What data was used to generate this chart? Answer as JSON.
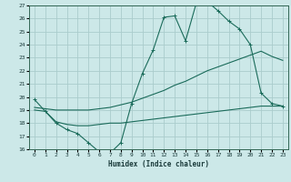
{
  "xlabel": "Humidex (Indice chaleur)",
  "bg_color": "#cce8e8",
  "line_color": "#1a6b5a",
  "grid_color": "#aacccc",
  "xlim": [
    -0.5,
    23.5
  ],
  "ylim": [
    16,
    27
  ],
  "xticks": [
    0,
    1,
    2,
    3,
    4,
    5,
    6,
    7,
    8,
    9,
    10,
    11,
    12,
    13,
    14,
    15,
    16,
    17,
    18,
    19,
    20,
    21,
    22,
    23
  ],
  "yticks": [
    16,
    17,
    18,
    19,
    20,
    21,
    22,
    23,
    24,
    25,
    26,
    27
  ],
  "series1_x": [
    0,
    1,
    2,
    3,
    4,
    5,
    6,
    7,
    8,
    9,
    10,
    11,
    12,
    13,
    14,
    15,
    16,
    17,
    18,
    19,
    20,
    21,
    22,
    23
  ],
  "series1_y": [
    19.8,
    18.9,
    18.0,
    17.5,
    17.2,
    16.5,
    15.8,
    15.7,
    16.5,
    19.5,
    21.8,
    23.6,
    26.1,
    26.2,
    24.3,
    27.2,
    27.3,
    26.6,
    25.8,
    25.2,
    24.0,
    20.3,
    19.5,
    19.3
  ],
  "series2_x": [
    0,
    1,
    2,
    3,
    4,
    5,
    6,
    7,
    8,
    9,
    10,
    11,
    12,
    13,
    14,
    15,
    16,
    17,
    18,
    19,
    20,
    21,
    22,
    23
  ],
  "series2_y": [
    19.2,
    19.1,
    19.0,
    19.0,
    19.0,
    19.0,
    19.1,
    19.2,
    19.4,
    19.6,
    19.9,
    20.2,
    20.5,
    20.9,
    21.2,
    21.6,
    22.0,
    22.3,
    22.6,
    22.9,
    23.2,
    23.5,
    23.1,
    22.8
  ],
  "series3_x": [
    0,
    1,
    2,
    3,
    4,
    5,
    6,
    7,
    8,
    9,
    10,
    11,
    12,
    13,
    14,
    15,
    16,
    17,
    18,
    19,
    20,
    21,
    22,
    23
  ],
  "series3_y": [
    19.0,
    18.9,
    18.1,
    17.9,
    17.8,
    17.8,
    17.9,
    18.0,
    18.0,
    18.1,
    18.2,
    18.3,
    18.4,
    18.5,
    18.6,
    18.7,
    18.8,
    18.9,
    19.0,
    19.1,
    19.2,
    19.3,
    19.3,
    19.3
  ]
}
